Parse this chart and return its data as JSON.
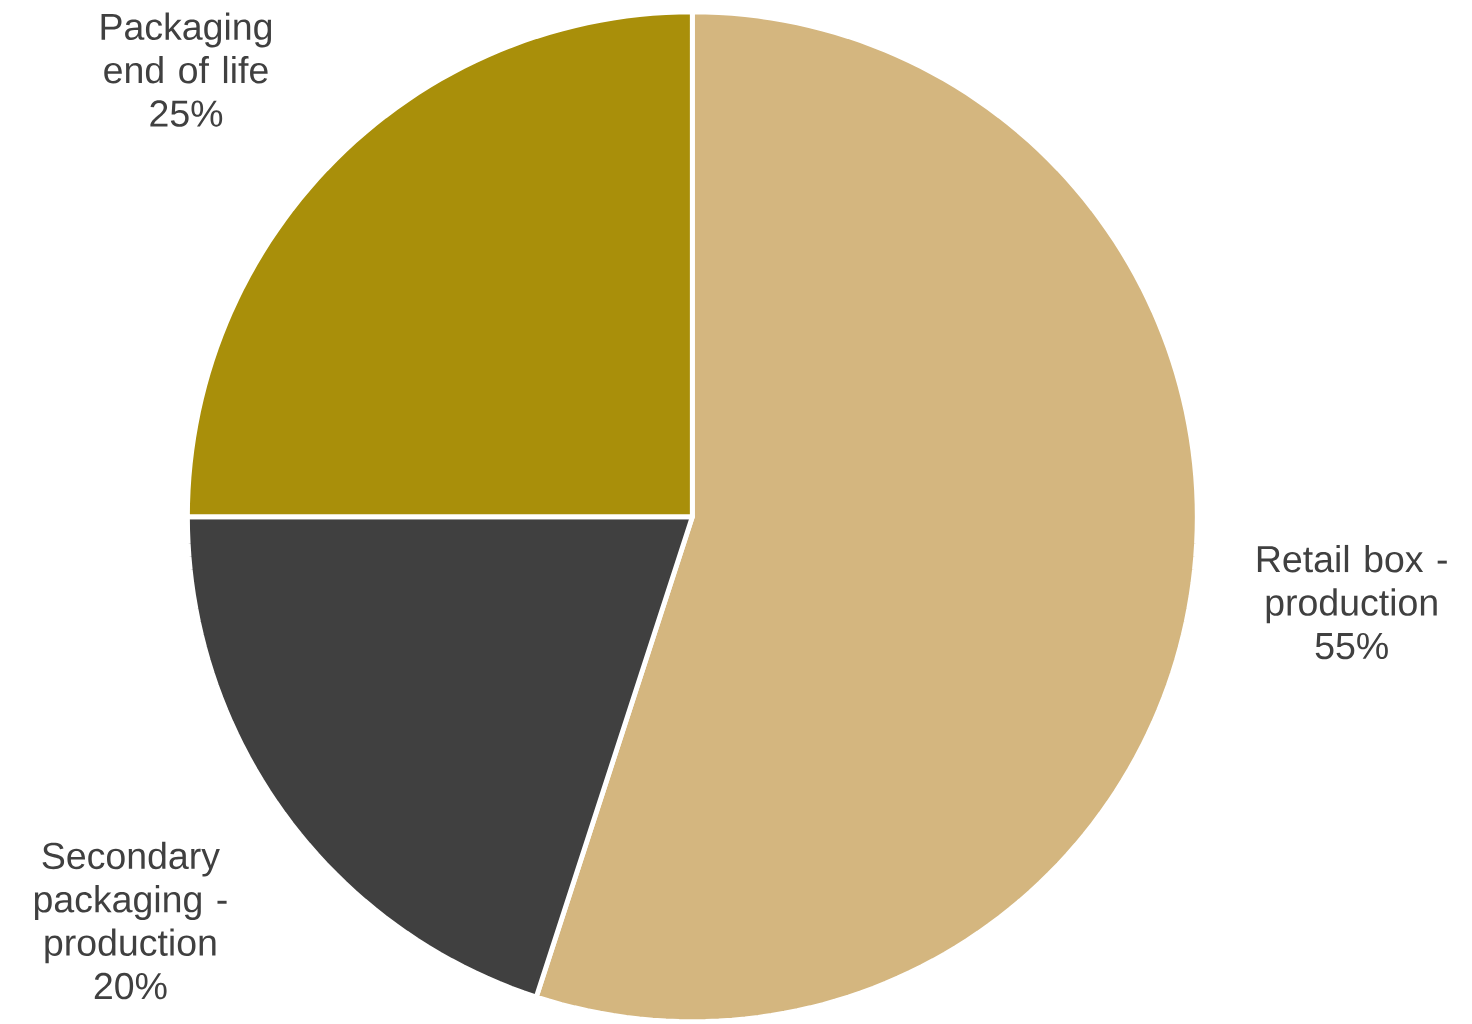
{
  "chart_data": {
    "type": "pie",
    "categories": [
      "Retail box - production",
      "Secondary packaging - production",
      "Packaging end of life"
    ],
    "values": [
      55,
      20,
      25
    ],
    "value_labels": [
      "55%",
      "20%",
      "25%"
    ],
    "colors": [
      "#d4b67f",
      "#404040",
      "#a98f0a"
    ]
  }
}
